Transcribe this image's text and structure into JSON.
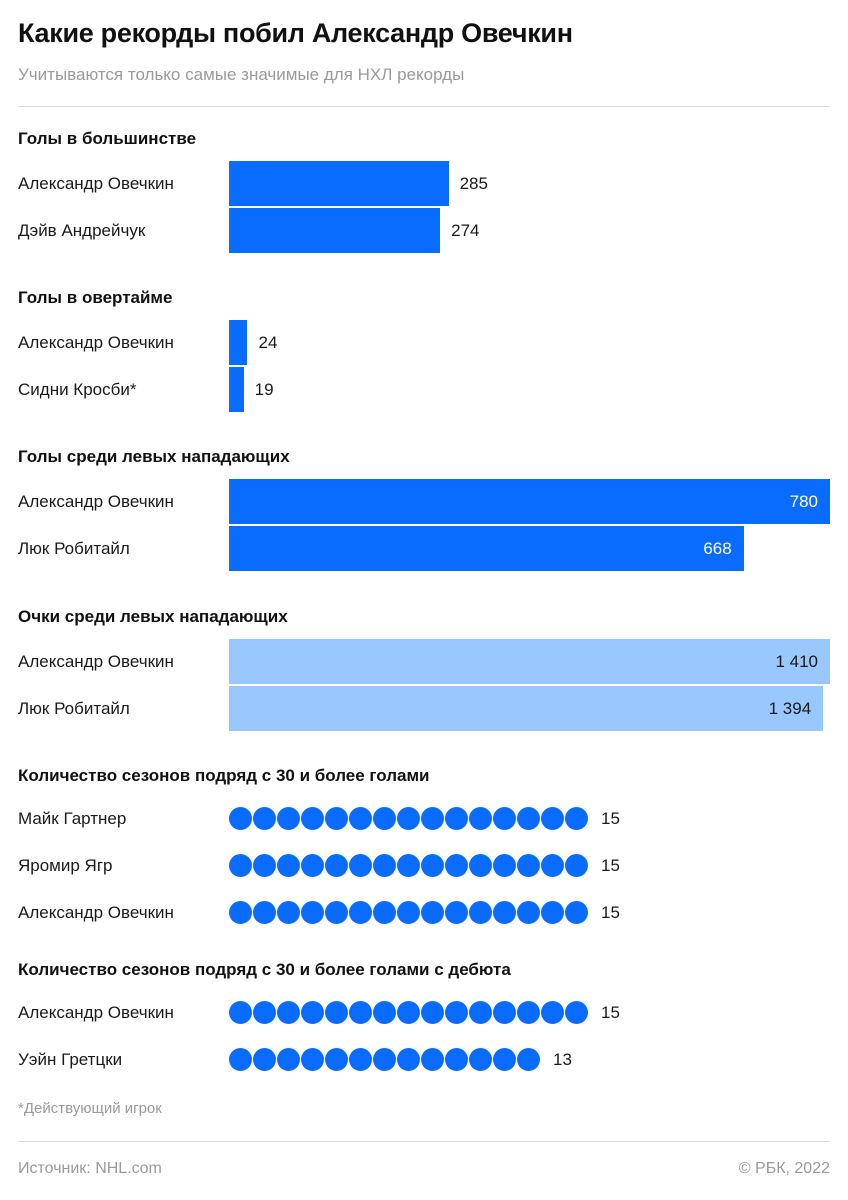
{
  "title": "Какие рекорды побил Александр Овечкин",
  "subtitle": "Учитываются только самые значимые для НХЛ рекорды",
  "footnote": "*Действующий игрок",
  "source": "Источник: NHL.com",
  "copyright": "© РБК, 2022",
  "colors": {
    "bar_primary": "#0a6cff",
    "bar_light": "#99c7ff",
    "dot": "#0a6cff"
  },
  "chart_data": [
    {
      "type": "bar",
      "title": "Голы в большинстве",
      "categories": [
        "Александр Овечкин",
        "Дэйв Андрейчук"
      ],
      "values": [
        285,
        274
      ],
      "labels": [
        "285",
        "274"
      ],
      "color": "primary"
    },
    {
      "type": "bar",
      "title": "Голы в овертайме",
      "categories": [
        "Александр Овечкин",
        "Сидни Кросби*"
      ],
      "values": [
        24,
        19
      ],
      "labels": [
        "24",
        "19"
      ],
      "color": "primary"
    },
    {
      "type": "bar",
      "title": "Голы среди левых нападающих",
      "categories": [
        "Александр Овечкин",
        "Люк Робитайл"
      ],
      "values": [
        780,
        668
      ],
      "labels": [
        "780",
        "668"
      ],
      "color": "primary"
    },
    {
      "type": "bar",
      "title": "Очки среди левых нападающих",
      "categories": [
        "Александр Овечкин",
        "Люк Робитайл"
      ],
      "values": [
        1410,
        1394
      ],
      "labels": [
        "1 410",
        "1 394"
      ],
      "color": "light"
    },
    {
      "type": "dots",
      "title": "Количество сезонов подряд с 30 и более голами",
      "categories": [
        "Майк Гартнер",
        "Яромир Ягр",
        "Александр Овечкин"
      ],
      "values": [
        15,
        15,
        15
      ],
      "labels": [
        "15",
        "15",
        "15"
      ]
    },
    {
      "type": "dots",
      "title": "Количество сезонов подряд с 30 и более голами с дебюта",
      "categories": [
        "Александр Овечкин",
        "Уэйн Гретцки"
      ],
      "values": [
        15,
        13
      ],
      "labels": [
        "15",
        "13"
      ]
    }
  ]
}
